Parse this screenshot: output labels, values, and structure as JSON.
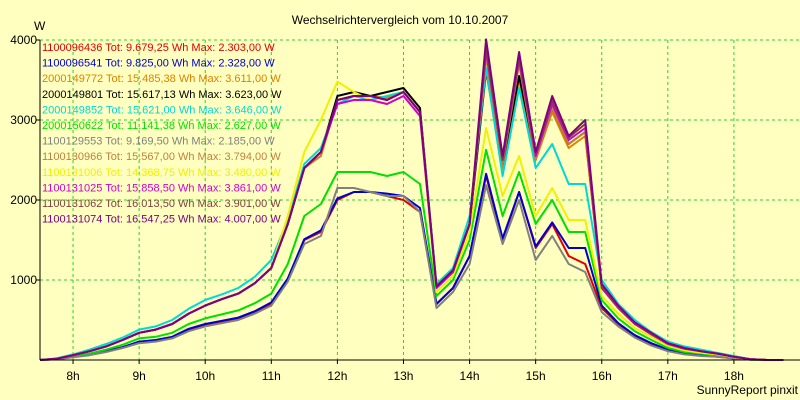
{
  "chart_data": {
    "type": "line",
    "title": "Wechselrichtervergleich vom 10.10.2007",
    "ylabel": "W",
    "footer": "SunnyReport pinxit",
    "ylim": [
      0,
      4000
    ],
    "xlim": [
      7.5,
      19.0
    ],
    "yticks": [
      1000,
      2000,
      3000,
      4000
    ],
    "xticks": [
      {
        "label": "8h",
        "value": 8
      },
      {
        "label": "9h",
        "value": 9
      },
      {
        "label": "10h",
        "value": 10
      },
      {
        "label": "11h",
        "value": 11
      },
      {
        "label": "12h",
        "value": 12
      },
      {
        "label": "13h",
        "value": 13
      },
      {
        "label": "14h",
        "value": 14
      },
      {
        "label": "15h",
        "value": 15
      },
      {
        "label": "16h",
        "value": 16
      },
      {
        "label": "17h",
        "value": 17
      },
      {
        "label": "18h",
        "value": 18
      }
    ],
    "grid": true,
    "plot_background": "#ffffc0",
    "grid_color": "#33cc33",
    "x": [
      7.5,
      7.75,
      8.0,
      8.25,
      8.5,
      8.75,
      9.0,
      9.25,
      9.5,
      9.75,
      10.0,
      10.25,
      10.5,
      10.75,
      11.0,
      11.25,
      11.5,
      11.75,
      12.0,
      12.25,
      12.5,
      12.75,
      13.0,
      13.25,
      13.5,
      13.75,
      14.0,
      14.25,
      14.5,
      14.75,
      15.0,
      15.25,
      15.5,
      15.75,
      16.0,
      16.25,
      16.5,
      16.75,
      17.0,
      17.25,
      17.5,
      17.75,
      18.0,
      18.25,
      18.5,
      18.75
    ],
    "series": [
      {
        "name": "1100096436 Tot: 9.679,25 Wh Max: 2.303,00 W",
        "color": "#e00000",
        "values": [
          0,
          10,
          40,
          70,
          110,
          160,
          220,
          240,
          280,
          380,
          440,
          480,
          520,
          600,
          700,
          1000,
          1500,
          1600,
          2000,
          2100,
          2100,
          2050,
          2000,
          1850,
          700,
          900,
          1300,
          2303,
          1500,
          2100,
          1400,
          1700,
          1300,
          1200,
          650,
          450,
          300,
          200,
          120,
          80,
          60,
          40,
          20,
          5,
          0,
          0
        ]
      },
      {
        "name": "1100096541 Tot: 9.825,00 Wh Max: 2.328,00 W",
        "color": "#0000d0",
        "values": [
          0,
          10,
          40,
          70,
          110,
          160,
          230,
          250,
          290,
          390,
          450,
          490,
          530,
          610,
          720,
          1020,
          1510,
          1620,
          2020,
          2100,
          2100,
          2080,
          2050,
          1900,
          700,
          900,
          1300,
          2328,
          1520,
          2100,
          1420,
          1720,
          1400,
          1400,
          680,
          460,
          310,
          210,
          130,
          90,
          70,
          50,
          20,
          5,
          0,
          0
        ]
      },
      {
        "name": "2000149772 Tot: 15.485,38 Wh Max: 3.611,00 W",
        "color": "#e08000",
        "values": [
          0,
          15,
          60,
          110,
          170,
          250,
          340,
          380,
          450,
          580,
          680,
          760,
          830,
          960,
          1150,
          1700,
          2400,
          2550,
          3250,
          3300,
          3300,
          3280,
          3350,
          3100,
          900,
          1100,
          1700,
          3611,
          2400,
          3500,
          2500,
          3100,
          2650,
          2800,
          900,
          650,
          450,
          320,
          200,
          140,
          110,
          80,
          40,
          10,
          0,
          0
        ]
      },
      {
        "name": "2000149801 Tot: 15.617,13 Wh Max: 3.623,00 W",
        "color": "#000000",
        "values": [
          0,
          15,
          60,
          110,
          170,
          250,
          340,
          380,
          450,
          580,
          680,
          760,
          830,
          960,
          1150,
          1700,
          2400,
          2600,
          3300,
          3350,
          3300,
          3350,
          3400,
          3150,
          920,
          1120,
          1700,
          3623,
          2450,
          3550,
          2550,
          3150,
          2700,
          2850,
          920,
          660,
          460,
          330,
          210,
          150,
          110,
          80,
          40,
          10,
          0,
          0
        ]
      },
      {
        "name": "2000149852 Tot: 15.621,00 Wh Max: 3.646,00 W",
        "color": "#00d8d8",
        "values": [
          0,
          20,
          70,
          130,
          200,
          280,
          380,
          420,
          500,
          640,
          750,
          820,
          900,
          1040,
          1250,
          1750,
          2450,
          2650,
          3200,
          3300,
          3250,
          3300,
          3350,
          3100,
          950,
          1150,
          1800,
          3646,
          2300,
          3400,
          2400,
          2700,
          2200,
          2200,
          1000,
          700,
          500,
          350,
          230,
          170,
          130,
          90,
          50,
          10,
          0,
          0
        ]
      },
      {
        "name": "2000150622 Tot: 11.141,38 Wh Max: 2.627,00 W",
        "color": "#00e000",
        "values": [
          0,
          12,
          50,
          80,
          130,
          190,
          270,
          290,
          340,
          450,
          520,
          570,
          620,
          710,
          830,
          1200,
          1800,
          1950,
          2350,
          2350,
          2350,
          2300,
          2350,
          2200,
          800,
          1000,
          1500,
          2627,
          1800,
          2350,
          1700,
          2000,
          1600,
          1600,
          750,
          520,
          360,
          250,
          150,
          100,
          80,
          60,
          30,
          5,
          0,
          0
        ]
      },
      {
        "name": "1100129553 Tot: 9.169,50 Wh Max: 2.185,00 W",
        "color": "#808080",
        "values": [
          0,
          10,
          35,
          60,
          100,
          150,
          210,
          230,
          270,
          360,
          420,
          460,
          500,
          580,
          680,
          980,
          1450,
          1550,
          2150,
          2150,
          2100,
          2050,
          2050,
          1850,
          650,
          850,
          1200,
          2185,
          1450,
          2000,
          1250,
          1550,
          1200,
          1100,
          600,
          420,
          280,
          180,
          110,
          70,
          50,
          40,
          20,
          5,
          0,
          0
        ]
      },
      {
        "name": "1100130966 Tot: 15.567,00 Wh Max: 3.794,00 W",
        "color": "#c08040",
        "values": [
          0,
          15,
          60,
          110,
          170,
          250,
          340,
          380,
          450,
          580,
          680,
          760,
          830,
          960,
          1150,
          1700,
          2400,
          2550,
          3250,
          3300,
          3300,
          3250,
          3350,
          3100,
          900,
          1100,
          1700,
          3794,
          2450,
          3700,
          2500,
          3150,
          2700,
          2850,
          900,
          650,
          450,
          320,
          200,
          140,
          110,
          80,
          40,
          10,
          0,
          0
        ]
      },
      {
        "name": "1100131006 Tot: 14.368,75 Wh Max: 3.480,00 W",
        "color": "#f0f000",
        "values": [
          0,
          15,
          60,
          110,
          170,
          250,
          340,
          380,
          450,
          580,
          680,
          760,
          830,
          960,
          1150,
          1800,
          2600,
          3000,
          3480,
          3350,
          3250,
          3200,
          3300,
          3050,
          850,
          1050,
          1600,
          2900,
          2050,
          2550,
          1800,
          2150,
          1750,
          1750,
          800,
          580,
          400,
          290,
          180,
          120,
          90,
          70,
          35,
          10,
          0,
          0
        ]
      },
      {
        "name": "1100131025 Tot: 15.858,50 Wh Max: 3.861,00 W",
        "color": "#d000d0",
        "values": [
          0,
          15,
          60,
          110,
          170,
          250,
          340,
          380,
          450,
          580,
          680,
          760,
          830,
          960,
          1150,
          1700,
          2400,
          2600,
          3200,
          3250,
          3250,
          3200,
          3300,
          3050,
          900,
          1100,
          1700,
          3861,
          2500,
          3750,
          2550,
          3200,
          2750,
          2900,
          900,
          650,
          450,
          320,
          200,
          140,
          110,
          80,
          40,
          10,
          0,
          0
        ]
      },
      {
        "name": "1100131062 Tot: 16.013,50 Wh Max: 3.901,00 W",
        "color": "#804040",
        "values": [
          0,
          15,
          60,
          110,
          170,
          250,
          340,
          380,
          450,
          580,
          680,
          760,
          830,
          960,
          1150,
          1700,
          2400,
          2600,
          3250,
          3300,
          3300,
          3250,
          3350,
          3100,
          920,
          1120,
          1700,
          3901,
          2500,
          3780,
          2580,
          3250,
          2780,
          2950,
          920,
          660,
          460,
          330,
          210,
          150,
          110,
          80,
          40,
          10,
          0,
          0
        ]
      },
      {
        "name": "1100131074 Tot: 16.547,25 Wh Max: 4.007,00 W",
        "color": "#800080",
        "values": [
          0,
          15,
          60,
          110,
          170,
          250,
          340,
          380,
          450,
          580,
          680,
          760,
          830,
          960,
          1150,
          1700,
          2400,
          2600,
          3250,
          3300,
          3300,
          3250,
          3350,
          3100,
          920,
          1120,
          1700,
          4007,
          2550,
          3850,
          2600,
          3300,
          2800,
          3000,
          950,
          680,
          470,
          340,
          210,
          150,
          110,
          80,
          40,
          10,
          0,
          0
        ]
      }
    ]
  }
}
